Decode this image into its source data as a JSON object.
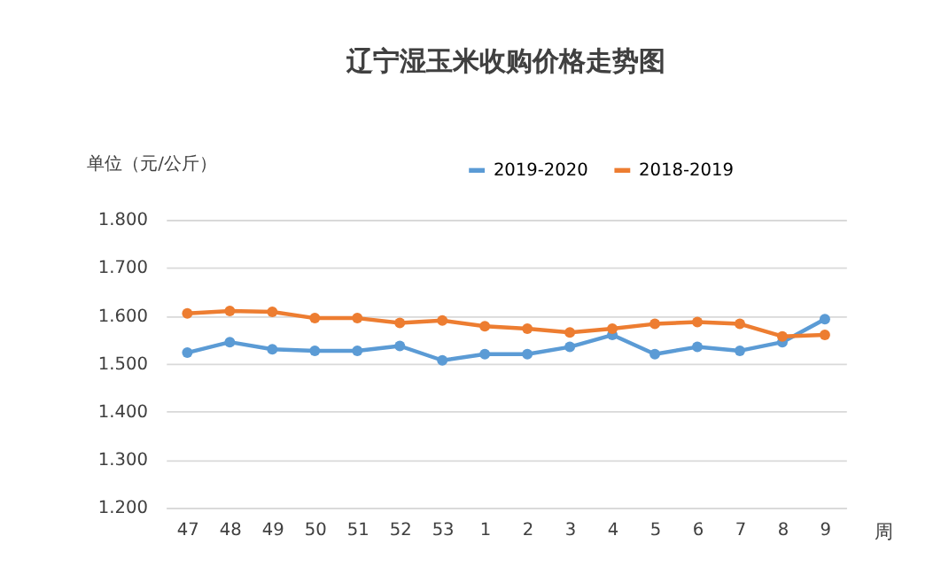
{
  "chart_data": {
    "type": "line",
    "title": "辽宁湿玉米收购价格走势图",
    "ylabel": "单位（元/公斤）",
    "xlabel": "周",
    "categories": [
      "47",
      "48",
      "49",
      "50",
      "51",
      "52",
      "53",
      "1",
      "2",
      "3",
      "4",
      "5",
      "6",
      "7",
      "8",
      "9"
    ],
    "series": [
      {
        "name": "2019-2020",
        "color": "#5b9bd5",
        "values": [
          1.523,
          1.545,
          1.53,
          1.527,
          1.527,
          1.537,
          1.507,
          1.52,
          1.52,
          1.535,
          1.56,
          1.52,
          1.535,
          1.527,
          1.545,
          1.593
        ]
      },
      {
        "name": "2018-2019",
        "color": "#ed7d31",
        "values": [
          1.605,
          1.61,
          1.608,
          1.595,
          1.595,
          1.585,
          1.59,
          1.578,
          1.573,
          1.565,
          1.573,
          1.583,
          1.587,
          1.583,
          1.557,
          1.56
        ]
      }
    ],
    "ylim": [
      1.2,
      1.8
    ],
    "yticks": [
      {
        "value": 1.2,
        "label": "1.200"
      },
      {
        "value": 1.3,
        "label": "1.300"
      },
      {
        "value": 1.4,
        "label": "1.400"
      },
      {
        "value": 1.5,
        "label": "1.500"
      },
      {
        "value": 1.6,
        "label": "1.600"
      },
      {
        "value": 1.7,
        "label": "1.700"
      },
      {
        "value": 1.8,
        "label": "1.800"
      }
    ],
    "grid": "y",
    "legend": "top right",
    "marker": "circle",
    "line_style": "solid"
  }
}
